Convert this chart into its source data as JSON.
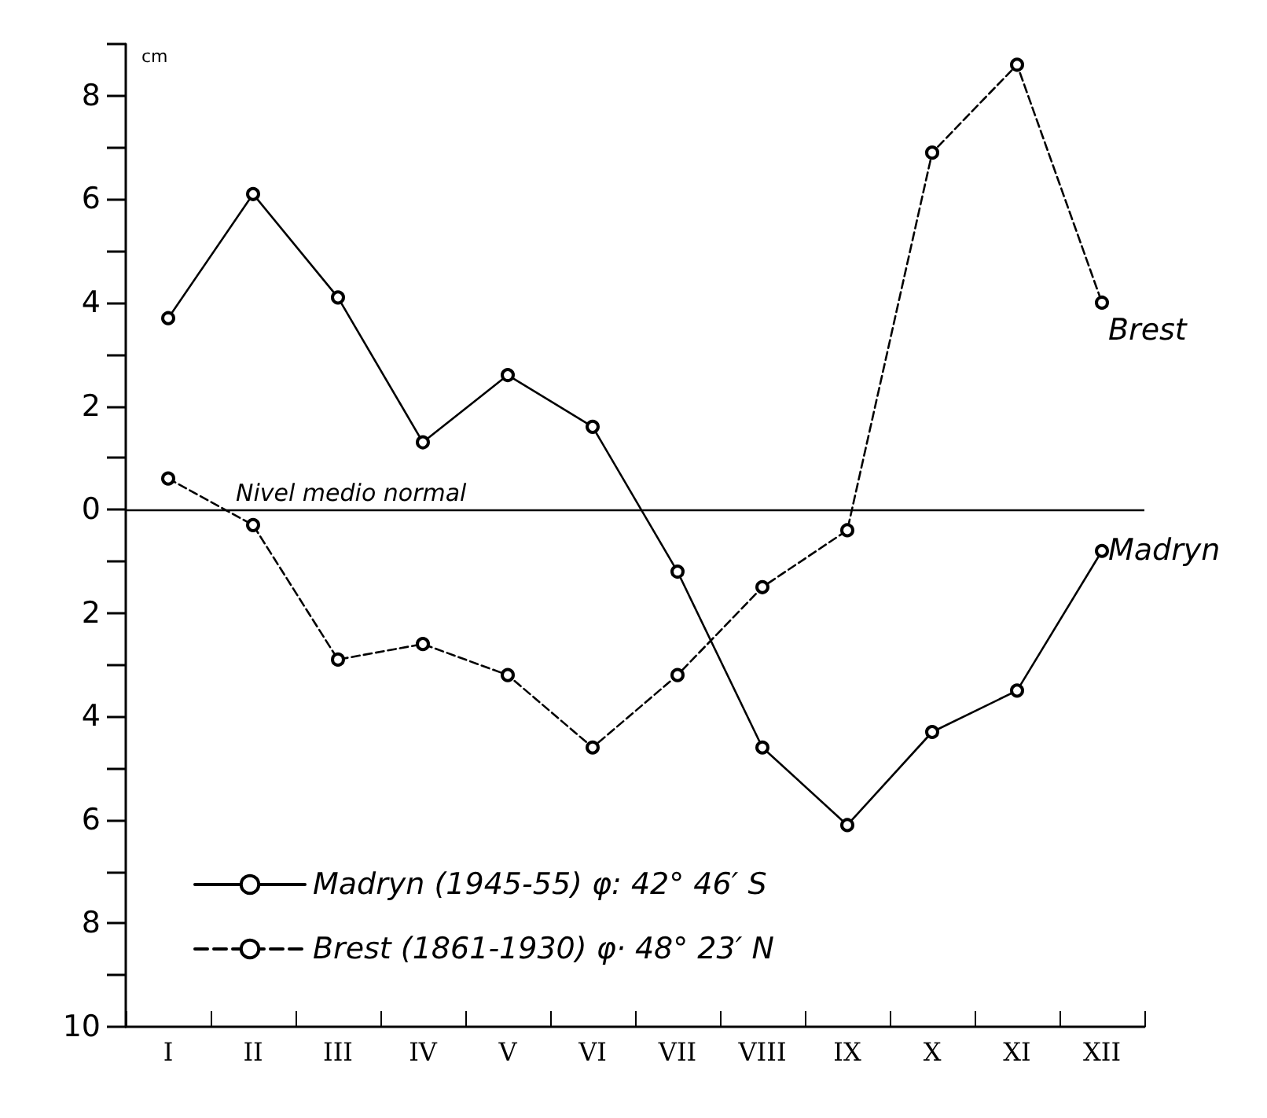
{
  "chart_data": {
    "type": "line",
    "ylabel": "cm",
    "categories": [
      "I",
      "II",
      "III",
      "IV",
      "V",
      "VI",
      "VII",
      "VIII",
      "IX",
      "X",
      "XI",
      "XII"
    ],
    "series": [
      {
        "name": "Madryn (1945-55) φ: 42° 46′ S",
        "color": "#000000",
        "line_style": "solid",
        "values": [
          3.7,
          6.1,
          4.1,
          1.3,
          2.6,
          1.6,
          -1.2,
          -4.6,
          -6.1,
          -4.3,
          -3.5,
          -0.8
        ]
      },
      {
        "name": "Brest (1861-1930) φ· 48° 23′ N",
        "color": "#000000",
        "line_style": "dashed",
        "values": [
          0.6,
          -0.3,
          -2.9,
          -2.6,
          -3.2,
          -4.6,
          -3.2,
          -1.5,
          -0.4,
          6.9,
          8.6,
          4.0
        ]
      }
    ],
    "ylim": [
      -10,
      9
    ],
    "yticks": [
      {
        "value": -10,
        "label": "10"
      },
      {
        "value": -8,
        "label": "8"
      },
      {
        "value": -6,
        "label": "6"
      },
      {
        "value": -4,
        "label": "4"
      },
      {
        "value": -2,
        "label": "2"
      },
      {
        "value": 0,
        "label": "0"
      },
      {
        "value": 2,
        "label": "2"
      },
      {
        "value": 4,
        "label": "4"
      },
      {
        "value": 6,
        "label": "6"
      },
      {
        "value": 8,
        "label": "8"
      }
    ],
    "ref_lines": [
      {
        "axis": "y",
        "value": 0,
        "label": "Nivel medio normal",
        "color": "#000000"
      }
    ],
    "annotations": [
      {
        "text": "Brest",
        "x": "XII",
        "y": 4.0
      },
      {
        "text": "Madryn",
        "x": "XII",
        "y": -0.8
      }
    ],
    "marker": "circle",
    "grid": false,
    "legend": "bottom left"
  }
}
